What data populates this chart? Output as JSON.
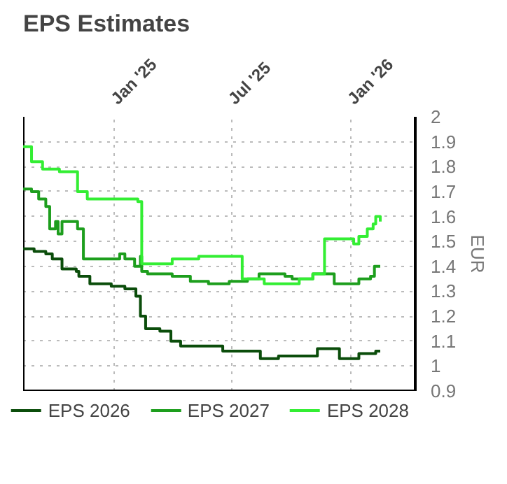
{
  "chart_data": {
    "type": "step",
    "title": "EPS Estimates",
    "ylabel": "EUR",
    "xlim": [
      "2024-08-14",
      "2026-04-11"
    ],
    "xticks": [
      {
        "value": "2025-01-01",
        "label": "Jan '25"
      },
      {
        "value": "2025-07-01",
        "label": "Jul '25"
      },
      {
        "value": "2026-01-01",
        "label": "Jan '26"
      }
    ],
    "ylim": [
      0.9,
      2
    ],
    "yticks": [
      0.9,
      1,
      1.1,
      1.2,
      1.3,
      1.4,
      1.5,
      1.6,
      1.7,
      1.8,
      1.9,
      2
    ],
    "grid": true,
    "legend": "bottom",
    "line_style": "solid",
    "marker": "none",
    "series": [
      {
        "name": "EPS 2026",
        "color": "#0b4d0b",
        "x": [
          "2024-08-14",
          "2024-08-31",
          "2024-09-18",
          "2024-09-28",
          "2024-10-13",
          "2024-11-04",
          "2024-11-08",
          "2024-11-25",
          "2024-12-28",
          "2025-01-18",
          "2025-02-04",
          "2025-02-11",
          "2025-02-19",
          "2025-03-13",
          "2025-03-30",
          "2025-04-14",
          "2025-05-16",
          "2025-06-18",
          "2025-07-20",
          "2025-08-15",
          "2025-09-12",
          "2025-11-04",
          "2025-11-11",
          "2025-12-07",
          "2025-12-15",
          "2026-01-02",
          "2026-01-14",
          "2026-02-05",
          "2026-02-09",
          "2026-02-16"
        ],
        "values": [
          1.47,
          1.46,
          1.45,
          1.43,
          1.39,
          1.38,
          1.36,
          1.33,
          1.32,
          1.31,
          1.28,
          1.2,
          1.15,
          1.14,
          1.1,
          1.08,
          1.08,
          1.06,
          1.06,
          1.03,
          1.04,
          1.04,
          1.07,
          1.07,
          1.03,
          1.03,
          1.05,
          1.05,
          1.06,
          1.06
        ]
      },
      {
        "name": "EPS 2027",
        "color": "#1d9e1d",
        "x": [
          "2024-08-14",
          "2024-08-27",
          "2024-09-07",
          "2024-09-18",
          "2024-09-24",
          "2024-10-03",
          "2024-10-07",
          "2024-10-13",
          "2024-11-06",
          "2024-11-15",
          "2024-12-30",
          "2025-01-10",
          "2025-01-18",
          "2025-02-02",
          "2025-02-11",
          "2025-02-13",
          "2025-02-22",
          "2025-04-01",
          "2025-04-29",
          "2025-05-27",
          "2025-06-28",
          "2025-07-26",
          "2025-08-13",
          "2025-09-03",
          "2025-09-22",
          "2025-10-03",
          "2025-11-04",
          "2025-12-02",
          "2025-12-07",
          "2026-01-06",
          "2026-01-14",
          "2026-02-01",
          "2026-02-07",
          "2026-02-16"
        ],
        "values": [
          1.71,
          1.7,
          1.67,
          1.64,
          1.55,
          1.58,
          1.53,
          1.58,
          1.55,
          1.43,
          1.43,
          1.45,
          1.43,
          1.4,
          1.44,
          1.38,
          1.37,
          1.36,
          1.34,
          1.33,
          1.34,
          1.35,
          1.37,
          1.37,
          1.36,
          1.35,
          1.37,
          1.37,
          1.33,
          1.33,
          1.35,
          1.36,
          1.4,
          1.4
        ]
      },
      {
        "name": "EPS 2028",
        "color": "#33ee33",
        "x": [
          "2024-08-14",
          "2024-08-27",
          "2024-09-13",
          "2024-10-09",
          "2024-11-06",
          "2024-11-21",
          "2025-02-07",
          "2025-02-13",
          "2025-04-01",
          "2025-05-10",
          "2025-05-12",
          "2025-07-18",
          "2025-08-21",
          "2025-10-14",
          "2025-11-04",
          "2025-11-22",
          "2026-01-06",
          "2026-01-14",
          "2026-01-27",
          "2026-02-05",
          "2026-02-09",
          "2026-02-16"
        ],
        "values": [
          1.88,
          1.82,
          1.79,
          1.78,
          1.7,
          1.67,
          1.66,
          1.41,
          1.43,
          1.43,
          1.44,
          1.35,
          1.33,
          1.35,
          1.37,
          1.51,
          1.49,
          1.52,
          1.55,
          1.57,
          1.6,
          1.58
        ]
      }
    ]
  }
}
